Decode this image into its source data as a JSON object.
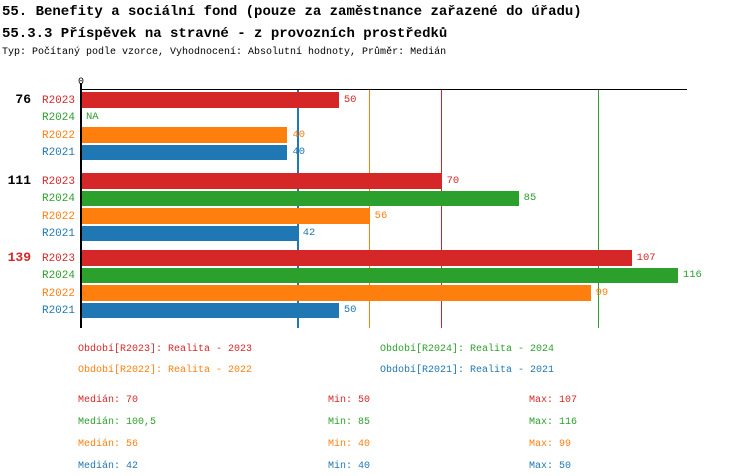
{
  "header": {
    "title_line1": "55. Benefity a sociální fond (pouze za zaměstnance zařazené do úřadu)",
    "title_line2": "55.3.3 Příspěvek na stravné - z provozních prostředků",
    "subtitle": "Typ: Počítaný podle vzorce, Vyhodnocení: Absolutní hodnoty, Průměr: Medián"
  },
  "colors": {
    "red": "#d62728",
    "green": "#2ca02c",
    "orange": "#ff7f0e",
    "blue": "#1f77b4",
    "black": "#000000"
  },
  "chart_data": {
    "type": "bar",
    "orientation": "horizontal",
    "title": "55.3.3 Příspěvek na stravné - z provozních prostředků",
    "axis": {
      "zero_label": "0",
      "xmin": 0,
      "xmax": 118,
      "grid": "median-lines"
    },
    "series_order": [
      "R2023",
      "R2024",
      "R2022",
      "R2021"
    ],
    "groups": [
      {
        "label": "76",
        "label_color": "black",
        "bars": [
          {
            "series": "R2023",
            "color_key": "red",
            "value": 50,
            "display": "50"
          },
          {
            "series": "R2024",
            "color_key": "green",
            "value": null,
            "display": "NA"
          },
          {
            "series": "R2022",
            "color_key": "orange",
            "value": 40,
            "display": "40"
          },
          {
            "series": "R2021",
            "color_key": "blue",
            "value": 40,
            "display": "40"
          }
        ]
      },
      {
        "label": "111",
        "label_color": "black",
        "bars": [
          {
            "series": "R2023",
            "color_key": "red",
            "value": 70,
            "display": "70"
          },
          {
            "series": "R2024",
            "color_key": "green",
            "value": 85,
            "display": "85"
          },
          {
            "series": "R2022",
            "color_key": "orange",
            "value": 56,
            "display": "56"
          },
          {
            "series": "R2021",
            "color_key": "blue",
            "value": 42,
            "display": "42"
          }
        ]
      },
      {
        "label": "139",
        "label_color": "red",
        "bars": [
          {
            "series": "R2023",
            "color_key": "red",
            "value": 107,
            "display": "107"
          },
          {
            "series": "R2024",
            "color_key": "green",
            "value": 116,
            "display": "116"
          },
          {
            "series": "R2022",
            "color_key": "orange",
            "value": 99,
            "display": "99"
          },
          {
            "series": "R2021",
            "color_key": "blue",
            "value": 50,
            "display": "50"
          }
        ]
      }
    ],
    "median_lines": [
      {
        "color_key": "blue",
        "value": 42
      },
      {
        "color_key": "orange",
        "value": 56
      },
      {
        "color_key": "red",
        "value": 70
      },
      {
        "color_key": "green",
        "value": 100.5
      }
    ]
  },
  "legend": {
    "items": [
      {
        "text": "Období[R2023]: Realita - 2023",
        "color_key": "red",
        "col": 0,
        "row": 0
      },
      {
        "text": "Období[R2024]: Realita - 2024",
        "color_key": "green",
        "col": 1,
        "row": 0
      },
      {
        "text": "Období[R2022]: Realita - 2022",
        "color_key": "orange",
        "col": 0,
        "row": 1
      },
      {
        "text": "Období[R2021]: Realita - 2021",
        "color_key": "blue",
        "col": 1,
        "row": 1
      }
    ]
  },
  "stats": {
    "median_label": "Medián",
    "min_label": "Min",
    "max_label": "Max",
    "rows": [
      {
        "color_key": "red",
        "median": "70",
        "min": "50",
        "max": "107"
      },
      {
        "color_key": "green",
        "median": "100,5",
        "min": "85",
        "max": "116"
      },
      {
        "color_key": "orange",
        "median": "56",
        "min": "40",
        "max": "99"
      },
      {
        "color_key": "blue",
        "median": "42",
        "min": "40",
        "max": "50"
      }
    ]
  }
}
